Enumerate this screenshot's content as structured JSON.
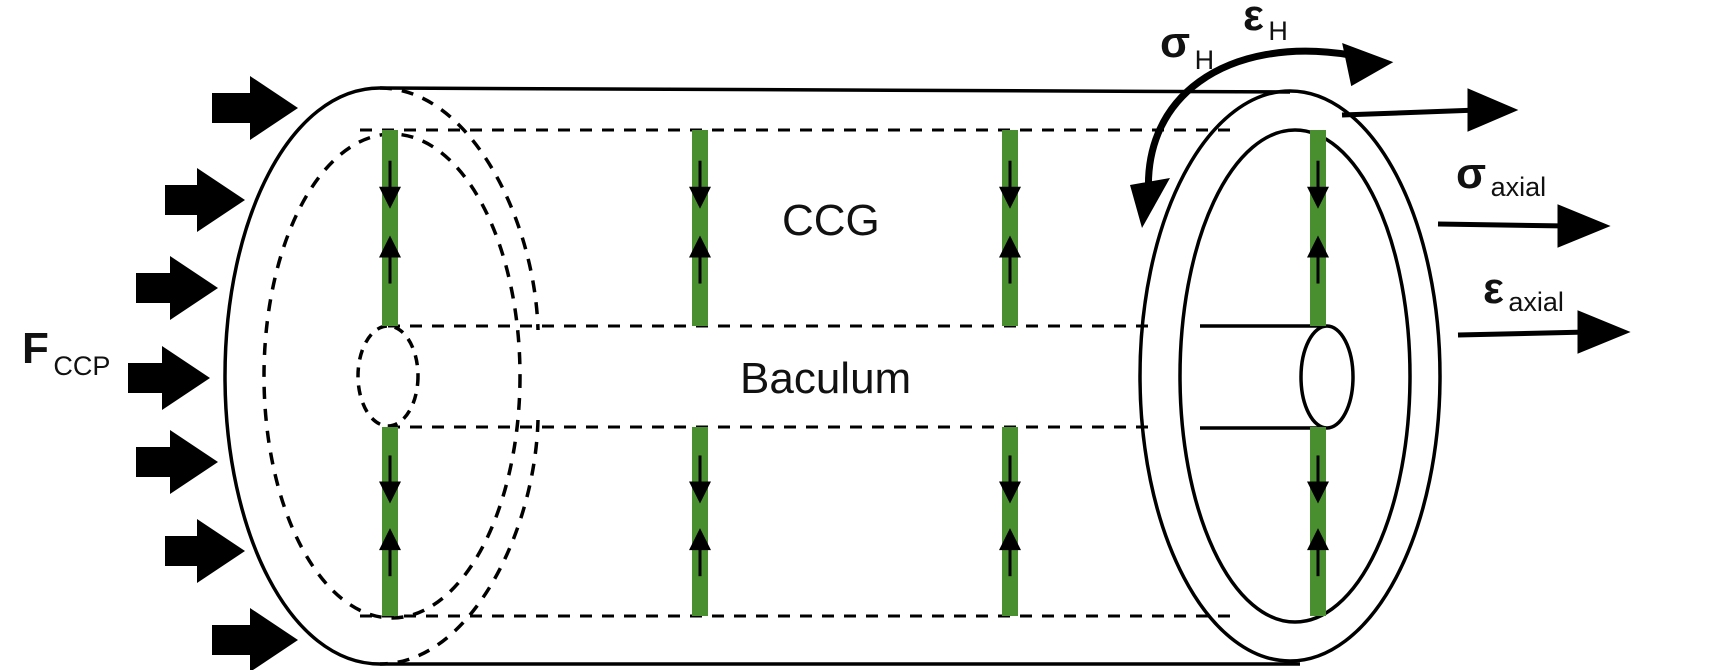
{
  "labels": {
    "ccg": "CCG",
    "baculum": "Baculum",
    "force_symbol": "F",
    "force_subscript": "CCP",
    "hoop_stress_symbol": "σ",
    "hoop_stress_subscript": "H",
    "hoop_strain_symbol": "ε",
    "hoop_strain_subscript": "H",
    "axial_stress_symbol": "σ",
    "axial_stress_subscript": "axial",
    "axial_strain_symbol": "ε",
    "axial_strain_subscript": "axial"
  },
  "colors": {
    "outline": "#000000",
    "fiber": "#4a8f2f",
    "text": "#111111"
  },
  "icons": [
    "force-arrow-icon",
    "rotation-arrow-icon",
    "axial-arrow-icon",
    "compression-arrow-icon"
  ]
}
